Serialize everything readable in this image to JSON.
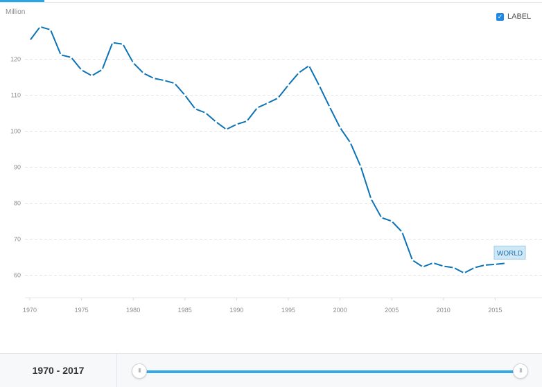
{
  "header": {
    "units": "Million",
    "label_toggle": "LABEL",
    "label_checked": true
  },
  "chart_data": {
    "type": "line",
    "x": [
      1970,
      1971,
      1972,
      1973,
      1974,
      1975,
      1976,
      1977,
      1978,
      1979,
      1980,
      1981,
      1982,
      1983,
      1984,
      1985,
      1986,
      1987,
      1988,
      1989,
      1990,
      1991,
      1992,
      1993,
      1994,
      1995,
      1996,
      1997,
      1998,
      1999,
      2000,
      2001,
      2002,
      2003,
      2004,
      2005,
      2006,
      2007,
      2008,
      2009,
      2010,
      2011,
      2012,
      2013,
      2014,
      2015,
      2016
    ],
    "series": [
      {
        "name": "WORLD",
        "color": "#0b72b5",
        "values": [
          125.2,
          129.0,
          128.2,
          121.2,
          120.5,
          117.0,
          115.4,
          117.1,
          124.6,
          124.2,
          119.0,
          116.1,
          114.7,
          114.1,
          113.3,
          110.0,
          106.2,
          105.1,
          102.6,
          100.5,
          101.9,
          102.8,
          106.5,
          107.8,
          109.2,
          112.8,
          116.2,
          118.2,
          112.6,
          106.7,
          101.0,
          96.8,
          90.2,
          81.2,
          76.0,
          75.0,
          72.0,
          64.2,
          62.3,
          63.4,
          62.5,
          62.1,
          60.6,
          62.1,
          62.8,
          63.0,
          63.3
        ]
      }
    ],
    "y_ticks": [
      60,
      70,
      80,
      90,
      100,
      110,
      120
    ],
    "x_ticks": [
      1970,
      1975,
      1980,
      1985,
      1990,
      1995,
      2000,
      2005,
      2010,
      2015
    ],
    "xlim": [
      1970,
      2017
    ],
    "ylim": [
      55,
      130
    ],
    "grid": true,
    "end_label": "WORLD"
  },
  "footer": {
    "range_label": "1970 - 2017",
    "slider_min": 1970,
    "slider_max": 2017,
    "slider_from": 1970,
    "slider_to": 2017,
    "handle_glyph": "III"
  }
}
